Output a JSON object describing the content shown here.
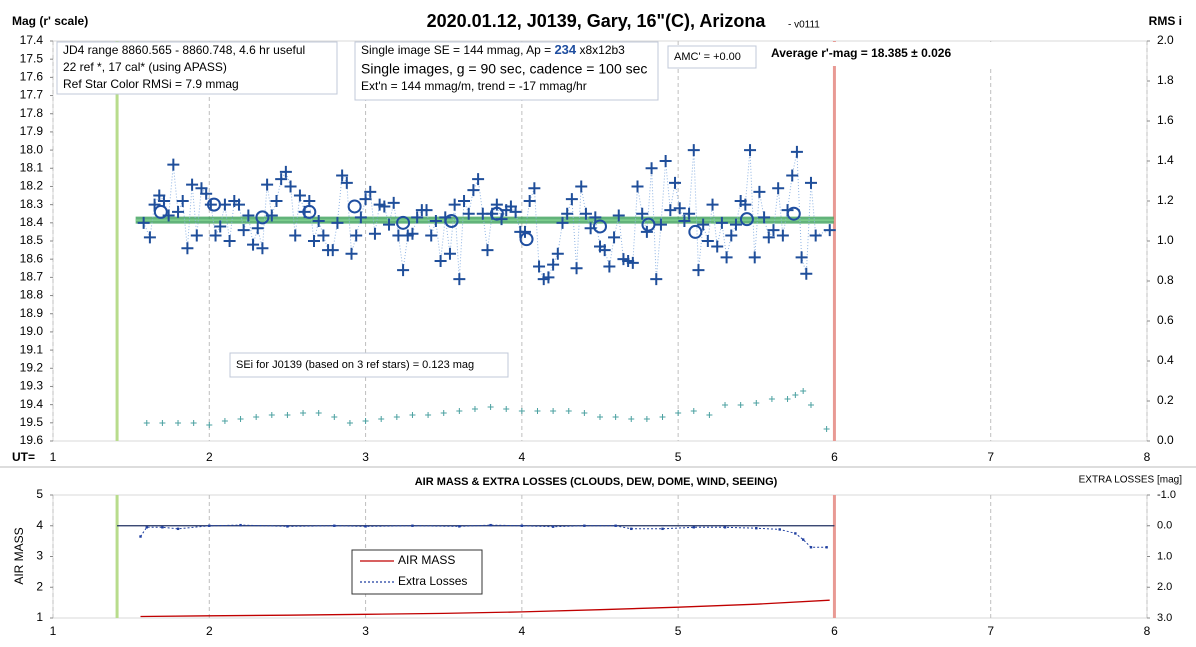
{
  "chart_data": [
    {
      "type": "scatter",
      "title": "2020.01.12, J0139, Gary, 16\"(C), Arizona",
      "subtitle": "- v0111",
      "ylabel": "Mag (r' scale)",
      "y2label": "RMS i",
      "xlabel": "UT=",
      "xlim": [
        1,
        8
      ],
      "xticks": [
        1,
        2,
        3,
        4,
        5,
        6,
        7,
        8
      ],
      "ylim": [
        17.4,
        19.6
      ],
      "y_inverted": true,
      "yticks": [
        17.4,
        17.5,
        17.6,
        17.7,
        17.8,
        17.9,
        {
          "value": 18,
          "label": "18.0"
        },
        18.1,
        18.2,
        18.3,
        18.4,
        18.5,
        18.6,
        18.7,
        18.8,
        18.9,
        {
          "value": 19,
          "label": "19.0"
        },
        19.1,
        19.2,
        19.3,
        19.4,
        19.5,
        19.6
      ],
      "y2lim": [
        0,
        2
      ],
      "y2ticks": [
        {
          "value": 0,
          "label": "0.0"
        },
        0.2,
        0.4,
        0.6,
        0.8,
        {
          "value": 1,
          "label": "1.0"
        },
        1.2,
        1.4,
        1.6,
        1.8,
        {
          "value": 2,
          "label": "2.0"
        }
      ],
      "grid": true,
      "average": 18.385,
      "average_color": "#2e9a4e",
      "vlines": [
        {
          "x": 1.41,
          "color": "#b8dc8c"
        },
        {
          "x": 6.0,
          "color": "#e89a94"
        }
      ],
      "series": [
        {
          "marker": "cross",
          "color": "#1f4e9a",
          "x": [
            1.58,
            1.62,
            1.65,
            1.68,
            1.71,
            1.74,
            1.77,
            1.8,
            1.83,
            1.86,
            1.89,
            1.92,
            1.95,
            1.98,
            2.01,
            2.04,
            2.07,
            2.1,
            2.13,
            2.16,
            2.19,
            2.22,
            2.25,
            2.28,
            2.31,
            2.34,
            2.37,
            2.4,
            2.43,
            2.46,
            2.49,
            2.52,
            2.55,
            2.58,
            2.61,
            2.64,
            2.67,
            2.7,
            2.73,
            2.76,
            2.79,
            2.82,
            2.85,
            2.88,
            2.91,
            2.94,
            2.97,
            3.0,
            3.03,
            3.06,
            3.09,
            3.12,
            3.15,
            3.18,
            3.21,
            3.24,
            3.27,
            3.3,
            3.33,
            3.36,
            3.39,
            3.42,
            3.45,
            3.48,
            3.51,
            3.54,
            3.57,
            3.6,
            3.63,
            3.66,
            3.69,
            3.72,
            3.75,
            3.78,
            3.81,
            3.84,
            3.87,
            3.9,
            3.93,
            3.96,
            3.99,
            4.02,
            4.05,
            4.08,
            4.11,
            4.14,
            4.17,
            4.2,
            4.23,
            4.26,
            4.29,
            4.32,
            4.35,
            4.38,
            4.41,
            4.44,
            4.47,
            4.5,
            4.53,
            4.56,
            4.59,
            4.62,
            4.65,
            4.68,
            4.71,
            4.74,
            4.77,
            4.8,
            4.83,
            4.86,
            4.89,
            4.92,
            4.95,
            4.98,
            5.01,
            5.04,
            5.07,
            5.1,
            5.13,
            5.16,
            5.19,
            5.22,
            5.25,
            5.28,
            5.31,
            5.34,
            5.37,
            5.4,
            5.43,
            5.46,
            5.49,
            5.52,
            5.55,
            5.58,
            5.61,
            5.64,
            5.67,
            5.7,
            5.73,
            5.76,
            5.79,
            5.82,
            5.85,
            5.88,
            5.97
          ],
          "values": [
            18.4,
            18.48,
            18.3,
            18.25,
            18.28,
            18.36,
            18.08,
            18.34,
            18.28,
            18.54,
            18.19,
            18.47,
            18.21,
            18.24,
            18.3,
            18.47,
            18.42,
            18.3,
            18.5,
            18.28,
            18.3,
            18.44,
            18.36,
            18.52,
            18.43,
            18.54,
            18.19,
            18.36,
            18.28,
            18.16,
            18.12,
            18.2,
            18.47,
            18.25,
            18.34,
            18.28,
            18.5,
            18.39,
            18.47,
            18.55,
            18.55,
            18.4,
            18.14,
            18.18,
            18.57,
            18.47,
            18.37,
            18.27,
            18.23,
            18.46,
            18.3,
            18.31,
            18.41,
            18.29,
            18.47,
            18.66,
            18.47,
            18.46,
            18.37,
            18.33,
            18.33,
            18.47,
            18.39,
            18.61,
            18.37,
            18.57,
            18.3,
            18.71,
            18.28,
            18.35,
            18.22,
            18.16,
            18.35,
            18.55,
            18.35,
            18.3,
            18.38,
            18.33,
            18.31,
            18.34,
            18.45,
            18.45,
            18.28,
            18.21,
            18.64,
            18.71,
            18.7,
            18.63,
            18.57,
            18.4,
            18.35,
            18.27,
            18.65,
            18.2,
            18.35,
            18.43,
            18.37,
            18.53,
            18.55,
            18.64,
            18.48,
            18.36,
            18.6,
            18.61,
            18.62,
            18.2,
            18.35,
            18.45,
            18.1,
            18.71,
            18.41,
            18.06,
            18.33,
            18.18,
            18.32,
            18.39,
            18.35,
            18.0,
            18.66,
            18.41,
            18.5,
            18.3,
            18.53,
            18.4,
            18.59,
            18.47,
            18.41,
            18.28,
            18.3,
            18.0,
            18.59,
            18.23,
            18.37,
            18.48,
            18.44,
            18.21,
            18.47,
            18.33,
            18.14,
            18.01,
            18.59,
            18.68,
            18.18,
            18.47,
            18.44
          ]
        },
        {
          "marker": "circle",
          "color": "#1f4ea0",
          "x": [
            1.69,
            2.03,
            2.34,
            2.64,
            2.93,
            3.24,
            3.55,
            3.84,
            4.03,
            4.5,
            4.81,
            5.11,
            5.44,
            5.74
          ],
          "values": [
            18.34,
            18.3,
            18.37,
            18.34,
            18.31,
            18.4,
            18.39,
            18.35,
            18.49,
            18.42,
            18.41,
            18.45,
            18.38,
            18.35
          ]
        },
        {
          "marker": "plus",
          "color": "#4aa0a0",
          "axis": "y2",
          "x": [
            1.6,
            1.7,
            1.8,
            1.9,
            2.0,
            2.1,
            2.2,
            2.3,
            2.4,
            2.5,
            2.6,
            2.7,
            2.8,
            2.9,
            3.0,
            3.1,
            3.2,
            3.3,
            3.4,
            3.5,
            3.6,
            3.7,
            3.8,
            3.9,
            4.0,
            4.1,
            4.2,
            4.3,
            4.4,
            4.5,
            4.6,
            4.7,
            4.8,
            4.9,
            5.0,
            5.1,
            5.2,
            5.3,
            5.4,
            5.5,
            5.6,
            5.7,
            5.75,
            5.8,
            5.85,
            5.95
          ],
          "values": [
            0.09,
            0.09,
            0.09,
            0.09,
            0.08,
            0.1,
            0.11,
            0.12,
            0.13,
            0.13,
            0.14,
            0.14,
            0.12,
            0.09,
            0.1,
            0.11,
            0.12,
            0.13,
            0.13,
            0.14,
            0.15,
            0.16,
            0.17,
            0.16,
            0.15,
            0.15,
            0.15,
            0.15,
            0.14,
            0.12,
            0.12,
            0.11,
            0.11,
            0.12,
            0.14,
            0.15,
            0.13,
            0.18,
            0.18,
            0.19,
            0.21,
            0.21,
            0.23,
            0.25,
            0.18,
            0.06
          ]
        }
      ],
      "boxes": [
        {
          "lines": [
            "JD4 range 8860.565 - 8860.748, 4.6 hr useful",
            "22 ref *, 17 cal* (using APASS)",
            "Ref Star Color RMSi = 7.9 mmag"
          ]
        },
        {
          "lines": [
            [
              "Single image SE = 144 mmag, Ap = ",
              "234",
              " x8x12b3"
            ],
            "Single images, g = 90 sec, cadence = 100 sec",
            "Ext'n = 144 mmag/m, trend = -17 mmag/hr"
          ]
        },
        {
          "lines": [
            "AMC' = +0.00"
          ]
        },
        {
          "lines": [
            [
              "Average r'-mag =  ",
              "18.385 ± 0.026"
            ]
          ]
        },
        {
          "lines": [
            "SEi for J0139 (based on 3 ref stars) = 0.123 mag"
          ]
        }
      ]
    },
    {
      "type": "line",
      "title": "AIR MASS & EXTRA LOSSES (CLOUDS, DEW, DOME, WIND, SEEING)",
      "ylabel": "AIR MASS",
      "y2label": "EXTRA LOSSES [mag]",
      "xlim": [
        1,
        8
      ],
      "xticks": [
        1,
        2,
        3,
        4,
        5,
        6,
        7,
        8
      ],
      "ylim": [
        1,
        5
      ],
      "yticks": [
        1,
        2,
        3,
        4,
        5
      ],
      "y2lim": [
        -1,
        3
      ],
      "y2_inverted": true,
      "y2ticks": [
        {
          "value": -1,
          "label": "-1.0"
        },
        {
          "value": 0,
          "label": "0.0"
        },
        {
          "value": 1,
          "label": "1.0"
        },
        {
          "value": 2,
          "label": "2.0"
        },
        {
          "value": 3,
          "label": "3.0"
        }
      ],
      "grid": true,
      "hline": 4,
      "vlines": [
        {
          "x": 1.41,
          "color": "#b8dc8c"
        },
        {
          "x": 6.0,
          "color": "#e89a94"
        }
      ],
      "series": [
        {
          "name": "AIR MASS",
          "color": "#c00000",
          "x": [
            1.56,
            2.0,
            2.5,
            3.0,
            3.5,
            4.0,
            4.5,
            5.0,
            5.5,
            5.97
          ],
          "values": [
            1.05,
            1.07,
            1.09,
            1.12,
            1.15,
            1.2,
            1.27,
            1.35,
            1.45,
            1.58
          ]
        },
        {
          "name": "Extra Losses",
          "color": "#1f3fa0",
          "axis": "y2",
          "dashed": true,
          "x": [
            1.56,
            1.6,
            1.7,
            1.8,
            2.0,
            2.2,
            2.5,
            2.8,
            3.0,
            3.3,
            3.6,
            3.8,
            4.0,
            4.2,
            4.4,
            4.6,
            4.7,
            4.9,
            5.1,
            5.3,
            5.5,
            5.65,
            5.75,
            5.8,
            5.85,
            5.95
          ],
          "values": [
            0.35,
            0.05,
            0.05,
            0.1,
            0.0,
            -0.02,
            0.02,
            0.0,
            0.02,
            0.0,
            0.02,
            -0.02,
            0.0,
            0.03,
            0.0,
            0.0,
            0.1,
            0.1,
            0.05,
            0.05,
            0.08,
            0.12,
            0.25,
            0.45,
            0.7,
            0.7
          ]
        }
      ]
    }
  ]
}
